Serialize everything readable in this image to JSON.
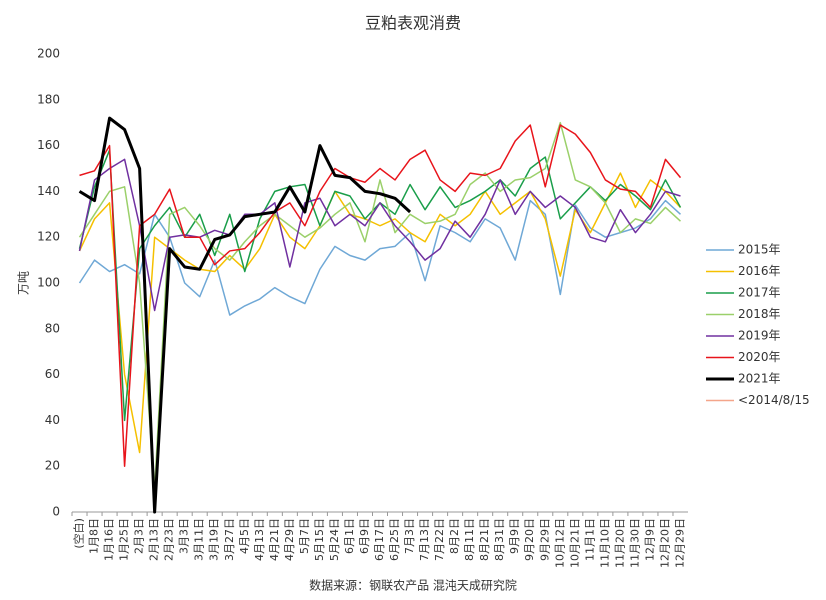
{
  "chart_data": {
    "type": "line",
    "title": "豆粕表观消费",
    "y_label": "万吨",
    "source": "数据来源：钢联农产品 混沌天成研究院",
    "categories": [
      "(空白)",
      "1月8日",
      "1月16日",
      "1月25日",
      "2月3日",
      "2月13日",
      "2月23日",
      "3月3日",
      "3月11日",
      "3月19日",
      "3月27日",
      "4月5日",
      "4月13日",
      "4月21日",
      "4月29日",
      "5月7日",
      "5月15日",
      "5月24日",
      "6月1日",
      "6月9日",
      "6月17日",
      "6月25日",
      "7月3日",
      "7月13日",
      "7月22日",
      "8月2日",
      "8月11日",
      "8月21日",
      "8月31日",
      "9月9日",
      "9月20日",
      "9月29日",
      "10月12日",
      "10月21日",
      "11月1日",
      "11月10日",
      "11月20日",
      "11月30日",
      "12月9日",
      "12月20日",
      "12月29日"
    ],
    "ylim": [
      0,
      200
    ],
    "yticks": [
      0,
      20,
      40,
      60,
      80,
      100,
      120,
      140,
      160,
      180,
      200
    ],
    "grid": false,
    "series": [
      {
        "name": "2015年",
        "color": "#6fa8d6",
        "width": 1.5,
        "values": [
          100,
          110,
          105,
          108,
          104,
          130,
          120,
          100,
          94,
          110,
          86,
          90,
          93,
          98,
          94,
          91,
          106,
          116,
          112,
          110,
          115,
          116,
          122,
          101,
          125,
          122,
          118,
          128,
          124,
          110,
          136,
          130,
          95,
          134,
          124,
          120,
          122,
          124,
          128,
          136,
          130
        ]
      },
      {
        "name": "2016年",
        "color": "#f5c000",
        "width": 1.5,
        "values": [
          114,
          128,
          135,
          60,
          26,
          120,
          115,
          110,
          106,
          105,
          112,
          106,
          115,
          130,
          120,
          115,
          125,
          140,
          130,
          128,
          125,
          128,
          122,
          118,
          130,
          125,
          130,
          140,
          130,
          135,
          140,
          128,
          103,
          132,
          122,
          135,
          148,
          133,
          145,
          140,
          133
        ]
      },
      {
        "name": "2017年",
        "color": "#1a9e4a",
        "width": 1.5,
        "values": [
          115,
          142,
          158,
          40,
          115,
          125,
          133,
          120,
          130,
          112,
          130,
          105,
          128,
          140,
          142,
          143,
          125,
          140,
          138,
          128,
          135,
          130,
          143,
          132,
          142,
          133,
          136,
          140,
          145,
          138,
          150,
          155,
          128,
          135,
          142,
          136,
          143,
          138,
          132,
          145,
          133
        ]
      },
      {
        "name": "2018年",
        "color": "#9bd06a",
        "width": 1.5,
        "values": [
          120,
          130,
          140,
          142,
          100,
          10,
          130,
          133,
          125,
          115,
          110,
          118,
          125,
          130,
          125,
          120,
          124,
          130,
          135,
          118,
          145,
          122,
          130,
          126,
          127,
          130,
          143,
          148,
          140,
          145,
          146,
          150,
          170,
          145,
          142,
          135,
          122,
          128,
          126,
          133,
          127
        ]
      },
      {
        "name": "2019年",
        "color": "#7030a0",
        "width": 1.5,
        "values": [
          114,
          145,
          150,
          154,
          125,
          88,
          120,
          121,
          120,
          123,
          121,
          130,
          130,
          135,
          107,
          135,
          137,
          125,
          130,
          125,
          135,
          125,
          118,
          110,
          115,
          127,
          120,
          130,
          145,
          130,
          140,
          133,
          138,
          133,
          120,
          118,
          132,
          122,
          130,
          140,
          138
        ]
      },
      {
        "name": "2020年",
        "color": "#e8141b",
        "width": 1.5,
        "values": [
          147,
          149,
          160,
          20,
          125,
          130,
          141,
          120,
          120,
          108,
          114,
          115,
          122,
          131,
          135,
          125,
          140,
          150,
          146,
          144,
          150,
          145,
          154,
          158,
          145,
          140,
          148,
          147,
          150,
          162,
          169,
          142,
          169,
          165,
          157,
          145,
          141,
          140,
          133,
          154,
          146
        ]
      },
      {
        "name": "2021年",
        "color": "#000000",
        "width": 3,
        "values": [
          140,
          136,
          172,
          167,
          150,
          0,
          115,
          107,
          106,
          119,
          121,
          129,
          130,
          131,
          142,
          131,
          160,
          147,
          146,
          140,
          139,
          137,
          131,
          null,
          null,
          null,
          null,
          null,
          null,
          null,
          null,
          null,
          null,
          null,
          null,
          null,
          null,
          null,
          null,
          null,
          null
        ]
      },
      {
        "name": "<2014/8/15",
        "color": "#f4a58a",
        "width": 1.5,
        "values": [
          null,
          null,
          null,
          null,
          null,
          null,
          null,
          null,
          null,
          null,
          null,
          null,
          null,
          null,
          null,
          null,
          null,
          null,
          null,
          null,
          null,
          null,
          null,
          null,
          null,
          null,
          null,
          null,
          null,
          null,
          null,
          null,
          null,
          null,
          null,
          null,
          null,
          null,
          null,
          null,
          null
        ]
      }
    ]
  }
}
